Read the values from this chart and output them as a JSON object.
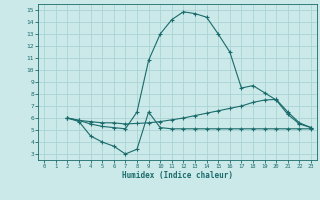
{
  "xlabel": "Humidex (Indice chaleur)",
  "xlim": [
    -0.5,
    23.5
  ],
  "ylim": [
    2.5,
    15.5
  ],
  "yticks": [
    3,
    4,
    5,
    6,
    7,
    8,
    9,
    10,
    11,
    12,
    13,
    14,
    15
  ],
  "xticks": [
    0,
    1,
    2,
    3,
    4,
    5,
    6,
    7,
    8,
    9,
    10,
    11,
    12,
    13,
    14,
    15,
    16,
    17,
    18,
    19,
    20,
    21,
    22,
    23
  ],
  "bg_color": "#cce9e9",
  "line_color": "#1a6b6b",
  "grid_color": "#aad4d4",
  "line1_x": [
    2,
    3,
    4,
    5,
    6,
    7,
    8,
    9,
    10,
    11,
    12,
    13,
    14,
    15,
    16,
    17,
    18,
    19,
    20,
    21,
    22,
    23
  ],
  "line1_y": [
    6.0,
    5.8,
    5.5,
    5.3,
    5.2,
    5.1,
    6.5,
    10.8,
    13.0,
    14.2,
    14.85,
    14.7,
    14.4,
    13.0,
    11.5,
    8.5,
    8.7,
    8.1,
    7.5,
    6.3,
    5.5,
    5.2
  ],
  "line2_x": [
    2,
    3,
    4,
    5,
    6,
    7,
    8,
    9,
    10,
    11,
    12,
    13,
    14,
    15,
    16,
    17,
    18,
    19,
    20,
    21,
    22,
    23
  ],
  "line2_y": [
    6.0,
    5.8,
    5.7,
    5.6,
    5.6,
    5.5,
    5.55,
    5.6,
    5.7,
    5.85,
    6.0,
    6.2,
    6.4,
    6.6,
    6.8,
    7.0,
    7.3,
    7.5,
    7.55,
    6.5,
    5.6,
    5.2
  ],
  "line3_x": [
    2,
    3,
    4,
    5,
    6,
    7,
    8,
    9,
    10,
    11,
    12,
    13,
    14,
    15,
    16,
    17,
    18,
    19,
    20,
    21,
    22,
    23
  ],
  "line3_y": [
    6.0,
    5.7,
    4.5,
    4.0,
    3.65,
    3.0,
    3.4,
    6.5,
    5.2,
    5.1,
    5.1,
    5.1,
    5.1,
    5.1,
    5.1,
    5.1,
    5.1,
    5.1,
    5.1,
    5.1,
    5.1,
    5.1
  ]
}
